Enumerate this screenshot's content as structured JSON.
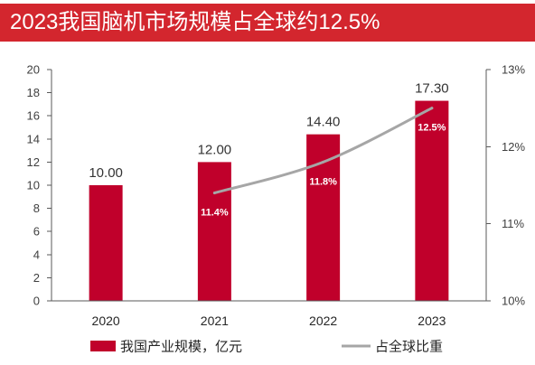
{
  "theme": {
    "header_bg": "#D3262E",
    "title_color": "#FFFFFF"
  },
  "chart_data": {
    "type": "bar",
    "title": "2023我国脑机市场规模占全球约12.5%",
    "categories": [
      "2020",
      "2021",
      "2022",
      "2023"
    ],
    "series": [
      {
        "name": "我国产业规模，亿元",
        "type": "bar",
        "axis": "left",
        "color": "#C0002B",
        "values": [
          10.0,
          12.0,
          14.4,
          17.3
        ],
        "labels": [
          "10.00",
          "12.00",
          "14.40",
          "17.30"
        ]
      },
      {
        "name": "占全球比重",
        "type": "line",
        "axis": "right",
        "smooth": true,
        "color": "#A6A6A6",
        "values": [
          null,
          11.4,
          11.8,
          12.5
        ],
        "labels": [
          null,
          "11.4%",
          "11.8%",
          "12.5%"
        ]
      }
    ],
    "y_left": {
      "min": 0,
      "max": 20,
      "step": 2,
      "ticks": [
        "0",
        "2",
        "4",
        "6",
        "8",
        "10",
        "12",
        "14",
        "16",
        "18",
        "20"
      ]
    },
    "y_right": {
      "min": 10,
      "max": 13,
      "step": 1,
      "ticks": [
        "10%",
        "11%",
        "12%",
        "13%"
      ]
    },
    "grid": false,
    "legend": "bottom"
  }
}
